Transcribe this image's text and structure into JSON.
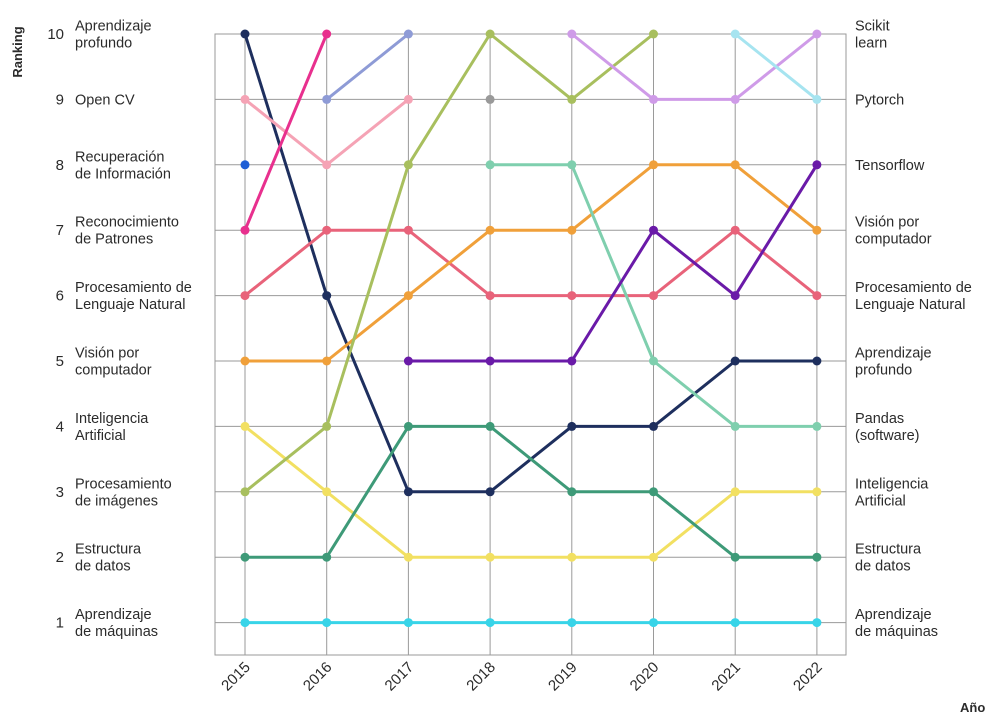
{
  "chart_data": {
    "type": "line",
    "title": "",
    "xlabel": "Año",
    "ylabel": "Ranking",
    "x": [
      "2015",
      "2016",
      "2017",
      "2018",
      "2019",
      "2020",
      "2021",
      "2022"
    ],
    "ylim": [
      1,
      10
    ],
    "y_ticks": [
      1,
      2,
      3,
      4,
      5,
      6,
      7,
      8,
      9,
      10
    ],
    "grid": true,
    "left_labels": [
      {
        "rank": 10,
        "text": [
          "Aprendizaje",
          "profundo"
        ]
      },
      {
        "rank": 9,
        "text": [
          "Open CV"
        ]
      },
      {
        "rank": 8,
        "text": [
          "Recuperación",
          "de Información"
        ]
      },
      {
        "rank": 7,
        "text": [
          "Reconocimiento",
          "de Patrones"
        ]
      },
      {
        "rank": 6,
        "text": [
          "Procesamiento de",
          "Lenguaje Natural"
        ]
      },
      {
        "rank": 5,
        "text": [
          "Visión por",
          "computador"
        ]
      },
      {
        "rank": 4,
        "text": [
          "Inteligencia",
          "Artificial"
        ]
      },
      {
        "rank": 3,
        "text": [
          "Procesamiento",
          "de imágenes"
        ]
      },
      {
        "rank": 2,
        "text": [
          "Estructura",
          "de datos"
        ]
      },
      {
        "rank": 1,
        "text": [
          "Aprendizaje",
          "de máquinas"
        ]
      }
    ],
    "right_labels": [
      {
        "rank": 10,
        "text": [
          "Scikit",
          "learn"
        ]
      },
      {
        "rank": 9,
        "text": [
          "Pytorch"
        ]
      },
      {
        "rank": 8,
        "text": [
          "Tensorflow"
        ]
      },
      {
        "rank": 7,
        "text": [
          "Visión por",
          "computador"
        ]
      },
      {
        "rank": 6,
        "text": [
          "Procesamiento de",
          "Lenguaje Natural"
        ]
      },
      {
        "rank": 5,
        "text": [
          "Aprendizaje",
          "profundo"
        ]
      },
      {
        "rank": 4,
        "text": [
          "Pandas",
          "(software)"
        ]
      },
      {
        "rank": 3,
        "text": [
          "Inteligencia",
          "Artificial"
        ]
      },
      {
        "rank": 2,
        "text": [
          "Estructura",
          "de datos"
        ]
      },
      {
        "rank": 1,
        "text": [
          "Aprendizaje",
          "de máquinas"
        ]
      }
    ],
    "series": [
      {
        "color": "#1e2f5e",
        "values": [
          10,
          6,
          3,
          3,
          4,
          4,
          5,
          5
        ]
      },
      {
        "color": "#f5a3b5",
        "values": [
          9,
          8,
          9,
          null,
          null,
          null,
          null,
          null
        ]
      },
      {
        "color": "#1f5fd6",
        "values": [
          8,
          null,
          null,
          null,
          null,
          null,
          null,
          null
        ]
      },
      {
        "color": "#e8308e",
        "values": [
          7,
          10,
          null,
          null,
          null,
          null,
          null,
          null
        ]
      },
      {
        "color": "#e8637a",
        "values": [
          6,
          7,
          7,
          6,
          6,
          6,
          7,
          6
        ]
      },
      {
        "color": "#f0a03a",
        "values": [
          5,
          5,
          6,
          7,
          7,
          8,
          8,
          7
        ]
      },
      {
        "color": "#f2e062",
        "values": [
          4,
          3,
          2,
          2,
          2,
          2,
          3,
          3
        ]
      },
      {
        "color": "#a8bf5e",
        "values": [
          3,
          4,
          8,
          10,
          9,
          10,
          null,
          null
        ]
      },
      {
        "color": "#3e9a78",
        "values": [
          2,
          2,
          4,
          4,
          3,
          3,
          2,
          2
        ]
      },
      {
        "color": "#38d4e8",
        "values": [
          1,
          1,
          1,
          1,
          1,
          1,
          1,
          1
        ]
      },
      {
        "color": "#8e9bd6",
        "values": [
          null,
          9,
          10,
          null,
          null,
          null,
          null,
          null
        ]
      },
      {
        "color": "#999999",
        "values": [
          null,
          null,
          null,
          9,
          null,
          null,
          null,
          null
        ]
      },
      {
        "color": "#7fcfae",
        "values": [
          null,
          null,
          null,
          8,
          8,
          5,
          4,
          4
        ]
      },
      {
        "color": "#6a1aa8",
        "values": [
          null,
          null,
          5,
          5,
          5,
          7,
          6,
          8
        ]
      },
      {
        "color": "#cf9be8",
        "values": [
          null,
          null,
          null,
          null,
          10,
          9,
          9,
          10
        ]
      },
      {
        "color": "#a6e4f0",
        "values": [
          null,
          null,
          null,
          null,
          null,
          null,
          10,
          9
        ]
      }
    ]
  }
}
